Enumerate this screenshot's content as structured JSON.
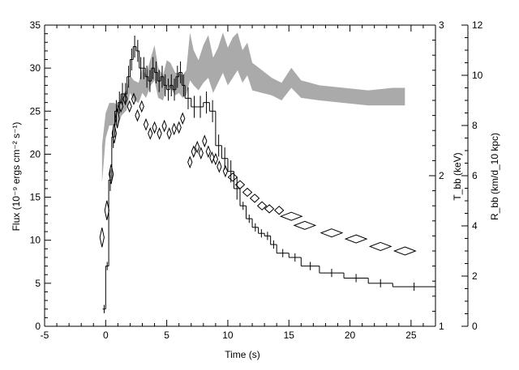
{
  "chart_data": {
    "type": "line",
    "title": "",
    "xlabel": "Time (s)",
    "ylabel_left": "Flux (10⁻⁹ ergs cm⁻² s⁻¹)",
    "ylabel_right_inner": "T_bb (keV)",
    "ylabel_right_outer": "R_bb (km/d_10 kpc)",
    "xlim": [
      -5,
      27
    ],
    "ylim_left": [
      0,
      35
    ],
    "ylim_right_inner": [
      1,
      3
    ],
    "ylim_right_outer": [
      0,
      12
    ],
    "grid": false,
    "legend": "none",
    "x_ticks": [
      "-5",
      "0",
      "5",
      "10",
      "15",
      "20",
      "25"
    ],
    "y_left_ticks": [
      "0",
      "5",
      "10",
      "15",
      "20",
      "25",
      "30",
      "35"
    ],
    "y_right_inner_ticks": [
      "1",
      "2",
      "3"
    ],
    "y_right_outer_ticks": [
      "0",
      "2",
      "4",
      "6",
      "8",
      "10",
      "12"
    ],
    "series": [
      {
        "style": "step",
        "color": "#000000",
        "x": [
          -0.25,
          0.0,
          0.25,
          0.5,
          0.75,
          1.0,
          1.25,
          1.5,
          1.75,
          2.0,
          2.25,
          2.5,
          2.75,
          3.0,
          3.25,
          3.5,
          3.75,
          4.0,
          4.25,
          4.5,
          4.75,
          5.0,
          5.25,
          5.5,
          5.75,
          6.0,
          6.25,
          6.5,
          7.0,
          7.5,
          8.0,
          8.5,
          9.0,
          9.5,
          10.0,
          10.5,
          11.0,
          11.5,
          12.0,
          12.5,
          13.0,
          13.5,
          14.0,
          15.0,
          16.0,
          17.5,
          19.5,
          21.5,
          23.5,
          27.0
        ],
        "values": [
          2.0,
          7.0,
          17.0,
          22.0,
          25.0,
          26.0,
          27.0,
          27.0,
          29.0,
          31.0,
          32.5,
          32.0,
          30.0,
          30.0,
          29.0,
          28.5,
          30.0,
          29.5,
          28.5,
          29.0,
          28.0,
          27.5,
          28.0,
          27.5,
          29.0,
          29.5,
          28.0,
          26.5,
          25.5,
          25.5,
          26.0,
          25.0,
          21.0,
          19.5,
          18.0,
          16.0,
          14.0,
          12.5,
          11.5,
          10.8,
          10.5,
          9.5,
          8.5,
          8.0,
          7.0,
          6.2,
          5.6,
          5.0,
          4.6,
          4.6
        ]
      },
      {
        "style": "diamond",
        "color": "#000000",
        "axis": "right_inner",
        "x": [
          -0.3,
          0.1,
          0.45,
          0.7,
          0.95,
          1.25,
          1.6,
          1.95,
          2.3,
          2.6,
          2.95,
          3.3,
          3.65,
          4.0,
          4.4,
          4.8,
          5.2,
          5.6,
          6.0,
          6.3,
          6.9,
          7.2,
          7.5,
          7.8,
          8.1,
          8.4,
          8.7,
          9.0,
          9.3,
          9.8,
          10.4,
          11.0,
          11.6,
          12.2,
          12.8,
          13.4,
          14.2,
          15.2,
          16.3,
          18.5,
          20.5,
          22.5,
          24.5
        ],
        "values": [
          1.59,
          1.77,
          2.01,
          2.28,
          2.38,
          2.46,
          2.51,
          2.46,
          2.51,
          2.4,
          2.46,
          2.34,
          2.28,
          2.32,
          2.28,
          2.33,
          2.28,
          2.31,
          2.32,
          2.38,
          2.09,
          2.16,
          2.19,
          2.15,
          2.23,
          2.16,
          2.12,
          2.11,
          2.06,
          2.03,
          1.99,
          1.94,
          1.89,
          1.85,
          1.8,
          1.78,
          1.77,
          1.73,
          1.67,
          1.62,
          1.58,
          1.53,
          1.5
        ]
      },
      {
        "style": "band",
        "color": "#aaaaaa",
        "axis": "right_outer",
        "x": [
          -0.3,
          0.0,
          0.3,
          0.7,
          1.0,
          1.3,
          1.7,
          2.0,
          2.3,
          2.7,
          3.0,
          3.3,
          3.7,
          4.0,
          4.3,
          4.7,
          5.0,
          5.3,
          5.7,
          6.0,
          6.3,
          6.6,
          6.9,
          7.2,
          7.6,
          8.0,
          8.4,
          8.8,
          9.2,
          9.6,
          10.0,
          10.4,
          10.8,
          11.2,
          11.6,
          12.0,
          12.8,
          13.6,
          14.4,
          15.2,
          16.0,
          17.5,
          19.5,
          21.5,
          23.5,
          24.5
        ],
        "low": [
          5.7,
          7.5,
          8.0,
          8.0,
          8.0,
          8.4,
          8.6,
          9.3,
          9.0,
          8.9,
          9.3,
          9.1,
          9.6,
          9.8,
          9.1,
          9.0,
          9.6,
          9.5,
          9.2,
          9.3,
          9.1,
          9.2,
          9.8,
          9.6,
          9.4,
          9.7,
          9.9,
          9.3,
          9.7,
          10.1,
          9.6,
          9.9,
          10.2,
          9.7,
          10.0,
          9.4,
          9.3,
          9.2,
          9.0,
          9.5,
          9.1,
          9.0,
          8.9,
          8.8,
          8.8,
          8.8
        ],
        "high": [
          7.2,
          8.5,
          8.9,
          8.9,
          8.8,
          9.2,
          9.4,
          10.0,
          9.8,
          9.7,
          10.3,
          10.0,
          10.7,
          11.2,
          10.3,
          10.0,
          10.6,
          10.5,
          10.1,
          10.1,
          10.0,
          10.2,
          11.7,
          11.0,
          10.6,
          11.2,
          11.6,
          10.7,
          11.1,
          11.7,
          11.1,
          11.5,
          11.7,
          11.0,
          11.3,
          10.5,
          10.2,
          9.9,
          9.7,
          10.3,
          9.8,
          9.6,
          9.5,
          9.4,
          9.5,
          9.5
        ]
      }
    ]
  }
}
